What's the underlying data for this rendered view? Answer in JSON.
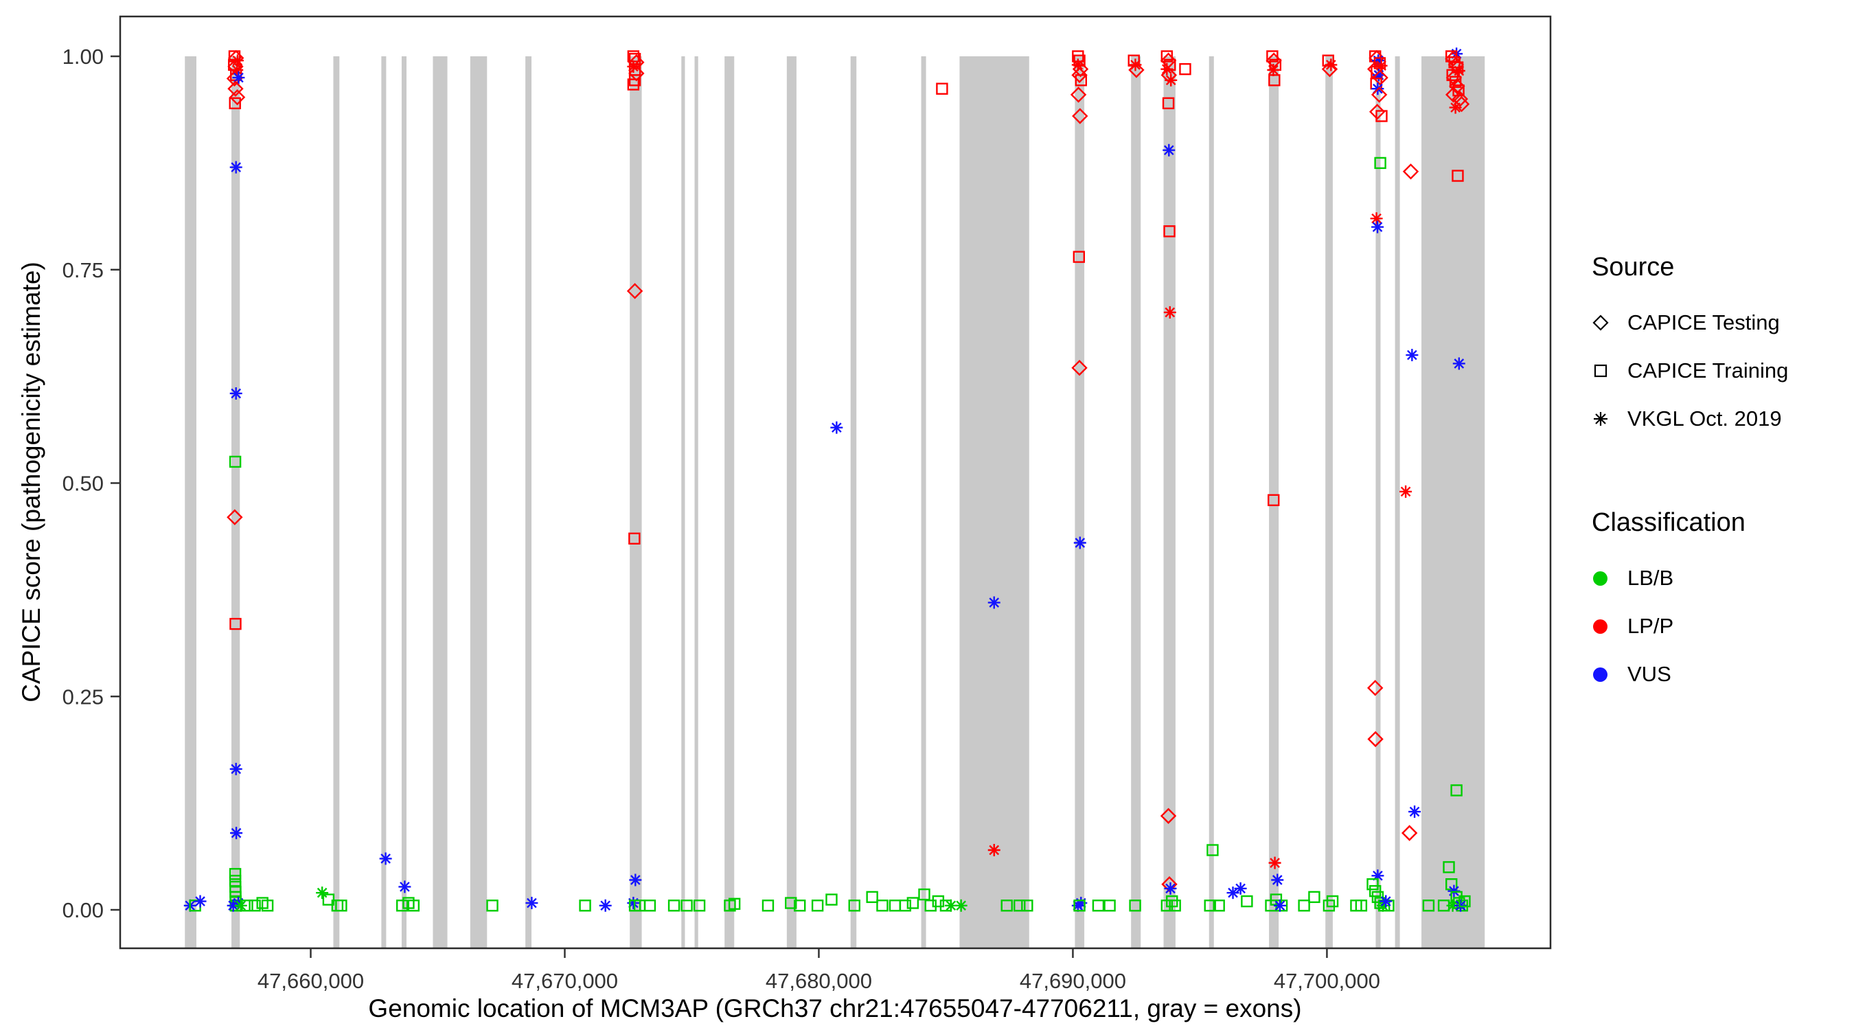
{
  "chart_data": {
    "type": "scatter",
    "title": "",
    "xlabel": "Genomic location of MCM3AP (GRCh37 chr21:47655047-47706211, gray = exons)",
    "ylabel": "CAPICE score (pathogenicity estimate)",
    "xlim": [
      47652500,
      47708800
    ],
    "ylim": [
      0,
      1
    ],
    "grid": false,
    "x_ticks": {
      "values": [
        47660000,
        47670000,
        47680000,
        47690000,
        47700000
      ],
      "labels": [
        "47,660,000",
        "47,670,000",
        "47,680,000",
        "47,690,000",
        "47,700,000"
      ]
    },
    "y_ticks": {
      "values": [
        0,
        0.25,
        0.5,
        0.75,
        1.0
      ],
      "labels": [
        "0.00",
        "0.25",
        "0.50",
        "0.75",
        "1.00"
      ]
    },
    "colors": {
      "exon": "#C9C9C9",
      "LB/B": "#00CD00",
      "LP/P": "#FF0000",
      "VUS": "#1414FF",
      "axis_text": "#333333",
      "panel_border": "#2b2b2b"
    },
    "legend": {
      "source": {
        "title": "Source",
        "items": [
          {
            "label": "CAPICE Testing",
            "marker": "diamond"
          },
          {
            "label": "CAPICE Training",
            "marker": "square"
          },
          {
            "label": "VKGL Oct. 2019",
            "marker": "asterisk"
          }
        ]
      },
      "classification": {
        "title": "Classification",
        "items": [
          {
            "label": "LB/B",
            "color": "#00CD00"
          },
          {
            "label": "LP/P",
            "color": "#FF0000"
          },
          {
            "label": "VUS",
            "color": "#1414FF"
          }
        ]
      }
    },
    "point_format": [
      "genomic_position",
      "capice_score",
      "source_code",
      "classification_code"
    ],
    "source_codes": {
      "d": "CAPICE Testing (open diamond)",
      "q": "CAPICE Training (open square)",
      "a": "VKGL Oct. 2019 (asterisk)"
    },
    "classification_codes": {
      "g": "LB/B",
      "r": "LP/P",
      "b": "VUS"
    },
    "exons": [
      [
        47655047,
        47655500
      ],
      [
        47656880,
        47657210
      ],
      [
        47660890,
        47661130
      ],
      [
        47662780,
        47662970
      ],
      [
        47663580,
        47663770
      ],
      [
        47664810,
        47665380
      ],
      [
        47666280,
        47666940
      ],
      [
        47668450,
        47668690
      ],
      [
        47672560,
        47673030
      ],
      [
        47674590,
        47674730
      ],
      [
        47675110,
        47675250
      ],
      [
        47676290,
        47676670
      ],
      [
        47678740,
        47679120
      ],
      [
        47681250,
        47681480
      ],
      [
        47684030,
        47684220
      ],
      [
        47685540,
        47688280
      ],
      [
        47690080,
        47690450
      ],
      [
        47692290,
        47692670
      ],
      [
        47693570,
        47694040
      ],
      [
        47695360,
        47695550
      ],
      [
        47697720,
        47698100
      ],
      [
        47699940,
        47700230
      ],
      [
        47701920,
        47702110
      ],
      [
        47702680,
        47702870
      ],
      [
        47703720,
        47706211
      ]
    ],
    "points": [
      [
        47655250,
        0.005,
        "a",
        "b"
      ],
      [
        47655450,
        0.005,
        "q",
        "g"
      ],
      [
        47655650,
        0.01,
        "a",
        "b"
      ],
      [
        47657000,
        1.0,
        "q",
        "r"
      ],
      [
        47657060,
        0.998,
        "d",
        "r"
      ],
      [
        47657120,
        0.995,
        "a",
        "r"
      ],
      [
        47656980,
        0.99,
        "q",
        "r"
      ],
      [
        47657040,
        0.988,
        "d",
        "r"
      ],
      [
        47657100,
        0.984,
        "a",
        "r"
      ],
      [
        47657060,
        0.978,
        "q",
        "r"
      ],
      [
        47657000,
        0.974,
        "d",
        "r"
      ],
      [
        47657160,
        0.975,
        "a",
        "b"
      ],
      [
        47657040,
        0.962,
        "d",
        "r"
      ],
      [
        47657020,
        0.945,
        "q",
        "r"
      ],
      [
        47657110,
        0.952,
        "d",
        "r"
      ],
      [
        47657060,
        0.87,
        "a",
        "b"
      ],
      [
        47657060,
        0.605,
        "a",
        "b"
      ],
      [
        47657030,
        0.525,
        "q",
        "g"
      ],
      [
        47657010,
        0.46,
        "d",
        "r"
      ],
      [
        47657040,
        0.335,
        "q",
        "r"
      ],
      [
        47657060,
        0.165,
        "a",
        "b"
      ],
      [
        47657070,
        0.09,
        "a",
        "b"
      ],
      [
        47657030,
        0.042,
        "q",
        "g"
      ],
      [
        47657030,
        0.034,
        "q",
        "g"
      ],
      [
        47657035,
        0.027,
        "q",
        "g"
      ],
      [
        47657040,
        0.021,
        "q",
        "g"
      ],
      [
        47657040,
        0.015,
        "q",
        "g"
      ],
      [
        47657045,
        0.01,
        "q",
        "g"
      ],
      [
        47657050,
        0.005,
        "q",
        "g"
      ],
      [
        47656950,
        0.005,
        "a",
        "b"
      ],
      [
        47657150,
        0.008,
        "a",
        "b"
      ],
      [
        47657250,
        0.005,
        "a",
        "g"
      ],
      [
        47657500,
        0.005,
        "q",
        "g"
      ],
      [
        47657800,
        0.005,
        "q",
        "g"
      ],
      [
        47658100,
        0.008,
        "q",
        "g"
      ],
      [
        47658300,
        0.005,
        "q",
        "g"
      ],
      [
        47660450,
        0.02,
        "a",
        "g"
      ],
      [
        47660700,
        0.012,
        "q",
        "g"
      ],
      [
        47661050,
        0.005,
        "q",
        "g"
      ],
      [
        47661200,
        0.005,
        "q",
        "g"
      ],
      [
        47662950,
        0.06,
        "a",
        "b"
      ],
      [
        47663700,
        0.027,
        "a",
        "b"
      ],
      [
        47663600,
        0.005,
        "q",
        "g"
      ],
      [
        47663850,
        0.008,
        "q",
        "g"
      ],
      [
        47664050,
        0.005,
        "q",
        "g"
      ],
      [
        47667150,
        0.005,
        "q",
        "g"
      ],
      [
        47668700,
        0.008,
        "a",
        "b"
      ],
      [
        47670800,
        0.005,
        "q",
        "g"
      ],
      [
        47671600,
        0.005,
        "a",
        "b"
      ],
      [
        47672700,
        1.0,
        "q",
        "r"
      ],
      [
        47672760,
        0.997,
        "q",
        "r"
      ],
      [
        47672820,
        0.993,
        "d",
        "r"
      ],
      [
        47672700,
        0.988,
        "a",
        "r"
      ],
      [
        47672760,
        0.984,
        "q",
        "r"
      ],
      [
        47672820,
        0.98,
        "d",
        "r"
      ],
      [
        47672760,
        0.972,
        "q",
        "r"
      ],
      [
        47672700,
        0.967,
        "q",
        "r"
      ],
      [
        47672760,
        0.725,
        "d",
        "r"
      ],
      [
        47672740,
        0.435,
        "q",
        "r"
      ],
      [
        47672780,
        0.035,
        "a",
        "b"
      ],
      [
        47672700,
        0.008,
        "a",
        "b"
      ],
      [
        47672760,
        0.005,
        "q",
        "g"
      ],
      [
        47672950,
        0.005,
        "q",
        "g"
      ],
      [
        47673350,
        0.005,
        "q",
        "g"
      ],
      [
        47674300,
        0.005,
        "q",
        "g"
      ],
      [
        47674800,
        0.005,
        "q",
        "g"
      ],
      [
        47675300,
        0.005,
        "q",
        "g"
      ],
      [
        47676500,
        0.005,
        "q",
        "g"
      ],
      [
        47676680,
        0.007,
        "q",
        "g"
      ],
      [
        47678000,
        0.005,
        "q",
        "g"
      ],
      [
        47678900,
        0.008,
        "q",
        "g"
      ],
      [
        47679250,
        0.005,
        "q",
        "g"
      ],
      [
        47679950,
        0.005,
        "q",
        "g"
      ],
      [
        47680500,
        0.012,
        "q",
        "g"
      ],
      [
        47680700,
        0.565,
        "a",
        "b"
      ],
      [
        47681400,
        0.005,
        "q",
        "g"
      ],
      [
        47682100,
        0.015,
        "q",
        "g"
      ],
      [
        47682500,
        0.005,
        "q",
        "g"
      ],
      [
        47683000,
        0.005,
        "q",
        "g"
      ],
      [
        47683400,
        0.005,
        "q",
        "g"
      ],
      [
        47683700,
        0.008,
        "q",
        "g"
      ],
      [
        47684150,
        0.018,
        "q",
        "g"
      ],
      [
        47684400,
        0.005,
        "q",
        "g"
      ],
      [
        47684700,
        0.01,
        "q",
        "g"
      ],
      [
        47685000,
        0.005,
        "q",
        "g"
      ],
      [
        47685200,
        0.005,
        "a",
        "g"
      ],
      [
        47685600,
        0.005,
        "a",
        "g"
      ],
      [
        47684850,
        0.962,
        "q",
        "r"
      ],
      [
        47686900,
        0.36,
        "a",
        "b"
      ],
      [
        47686900,
        0.07,
        "a",
        "r"
      ],
      [
        47687400,
        0.005,
        "q",
        "g"
      ],
      [
        47687900,
        0.005,
        "q",
        "g"
      ],
      [
        47688200,
        0.005,
        "q",
        "g"
      ],
      [
        47690200,
        1.0,
        "q",
        "r"
      ],
      [
        47690260,
        0.995,
        "q",
        "r"
      ],
      [
        47690200,
        0.99,
        "a",
        "r"
      ],
      [
        47690300,
        0.985,
        "d",
        "r"
      ],
      [
        47690260,
        0.978,
        "d",
        "r"
      ],
      [
        47690320,
        0.972,
        "q",
        "r"
      ],
      [
        47690220,
        0.955,
        "d",
        "r"
      ],
      [
        47690280,
        0.93,
        "d",
        "r"
      ],
      [
        47690240,
        0.765,
        "q",
        "r"
      ],
      [
        47690260,
        0.635,
        "d",
        "r"
      ],
      [
        47690280,
        0.43,
        "a",
        "b"
      ],
      [
        47690200,
        0.005,
        "a",
        "b"
      ],
      [
        47690320,
        0.008,
        "a",
        "b"
      ],
      [
        47690260,
        0.005,
        "q",
        "g"
      ],
      [
        47691000,
        0.005,
        "q",
        "g"
      ],
      [
        47691450,
        0.005,
        "q",
        "g"
      ],
      [
        47692400,
        0.995,
        "q",
        "r"
      ],
      [
        47692460,
        0.99,
        "a",
        "r"
      ],
      [
        47692500,
        0.984,
        "d",
        "r"
      ],
      [
        47692450,
        0.005,
        "q",
        "g"
      ],
      [
        47693700,
        1.0,
        "q",
        "r"
      ],
      [
        47693760,
        0.995,
        "d",
        "r"
      ],
      [
        47693820,
        0.99,
        "q",
        "r"
      ],
      [
        47693700,
        0.985,
        "a",
        "r"
      ],
      [
        47693780,
        0.978,
        "d",
        "r"
      ],
      [
        47693860,
        0.972,
        "a",
        "r"
      ],
      [
        47694420,
        0.985,
        "q",
        "r"
      ],
      [
        47693760,
        0.945,
        "q",
        "r"
      ],
      [
        47693780,
        0.89,
        "a",
        "b"
      ],
      [
        47693800,
        0.795,
        "q",
        "r"
      ],
      [
        47693820,
        0.7,
        "a",
        "r"
      ],
      [
        47693760,
        0.11,
        "d",
        "r"
      ],
      [
        47693800,
        0.03,
        "d",
        "r"
      ],
      [
        47693840,
        0.025,
        "a",
        "b"
      ],
      [
        47693700,
        0.005,
        "q",
        "g"
      ],
      [
        47693900,
        0.01,
        "q",
        "g"
      ],
      [
        47694020,
        0.005,
        "q",
        "g"
      ],
      [
        47695500,
        0.07,
        "q",
        "g"
      ],
      [
        47695400,
        0.005,
        "q",
        "g"
      ],
      [
        47695750,
        0.005,
        "q",
        "g"
      ],
      [
        47696300,
        0.02,
        "a",
        "b"
      ],
      [
        47696600,
        0.025,
        "a",
        "b"
      ],
      [
        47696850,
        0.01,
        "q",
        "g"
      ],
      [
        47697850,
        1.0,
        "q",
        "r"
      ],
      [
        47697910,
        0.995,
        "d",
        "r"
      ],
      [
        47697970,
        0.99,
        "q",
        "r"
      ],
      [
        47697890,
        0.984,
        "a",
        "r"
      ],
      [
        47697930,
        0.972,
        "q",
        "r"
      ],
      [
        47697900,
        0.48,
        "q",
        "r"
      ],
      [
        47697950,
        0.055,
        "a",
        "r"
      ],
      [
        47698050,
        0.035,
        "a",
        "b"
      ],
      [
        47697800,
        0.005,
        "q",
        "g"
      ],
      [
        47698000,
        0.012,
        "q",
        "g"
      ],
      [
        47698220,
        0.005,
        "q",
        "g"
      ],
      [
        47698150,
        0.005,
        "a",
        "b"
      ],
      [
        47699100,
        0.005,
        "q",
        "g"
      ],
      [
        47699500,
        0.015,
        "q",
        "g"
      ],
      [
        47700050,
        0.995,
        "q",
        "r"
      ],
      [
        47700110,
        0.985,
        "d",
        "r"
      ],
      [
        47700160,
        0.99,
        "a",
        "r"
      ],
      [
        47700080,
        0.005,
        "q",
        "g"
      ],
      [
        47700220,
        0.01,
        "q",
        "g"
      ],
      [
        47701150,
        0.005,
        "q",
        "g"
      ],
      [
        47701350,
        0.005,
        "q",
        "g"
      ],
      [
        47701900,
        1.0,
        "q",
        "r"
      ],
      [
        47701960,
        0.998,
        "d",
        "r"
      ],
      [
        47702020,
        0.995,
        "a",
        "b"
      ],
      [
        47702080,
        0.992,
        "q",
        "r"
      ],
      [
        47702140,
        0.989,
        "a",
        "r"
      ],
      [
        47701900,
        0.985,
        "d",
        "r"
      ],
      [
        47701960,
        0.982,
        "q",
        "r"
      ],
      [
        47702040,
        0.978,
        "a",
        "b"
      ],
      [
        47702100,
        0.975,
        "d",
        "r"
      ],
      [
        47701940,
        0.968,
        "q",
        "r"
      ],
      [
        47702000,
        0.962,
        "a",
        "b"
      ],
      [
        47702060,
        0.955,
        "d",
        "r"
      ],
      [
        47701980,
        0.935,
        "d",
        "r"
      ],
      [
        47702150,
        0.93,
        "q",
        "r"
      ],
      [
        47702100,
        0.875,
        "q",
        "g"
      ],
      [
        47701950,
        0.81,
        "a",
        "r"
      ],
      [
        47701990,
        0.8,
        "a",
        "b"
      ],
      [
        47703300,
        0.865,
        "d",
        "r"
      ],
      [
        47703350,
        0.65,
        "a",
        "b"
      ],
      [
        47703100,
        0.49,
        "a",
        "r"
      ],
      [
        47703250,
        0.09,
        "d",
        "r"
      ],
      [
        47703450,
        0.115,
        "a",
        "b"
      ],
      [
        47701900,
        0.26,
        "d",
        "r"
      ],
      [
        47701910,
        0.2,
        "d",
        "r"
      ],
      [
        47702000,
        0.04,
        "a",
        "b"
      ],
      [
        47701800,
        0.03,
        "q",
        "g"
      ],
      [
        47701900,
        0.022,
        "q",
        "g"
      ],
      [
        47702000,
        0.015,
        "q",
        "g"
      ],
      [
        47702100,
        0.008,
        "q",
        "g"
      ],
      [
        47702250,
        0.005,
        "q",
        "g"
      ],
      [
        47702420,
        0.005,
        "q",
        "g"
      ],
      [
        47702200,
        0.005,
        "a",
        "g"
      ],
      [
        47702320,
        0.01,
        "a",
        "b"
      ],
      [
        47705100,
        1.003,
        "a",
        "b"
      ],
      [
        47704900,
        1.0,
        "q",
        "r"
      ],
      [
        47704960,
        0.997,
        "d",
        "r"
      ],
      [
        47705020,
        0.993,
        "q",
        "r"
      ],
      [
        47705080,
        0.99,
        "d",
        "r"
      ],
      [
        47705140,
        0.987,
        "q",
        "r"
      ],
      [
        47705200,
        0.983,
        "a",
        "r"
      ],
      [
        47704940,
        0.978,
        "q",
        "r"
      ],
      [
        47705000,
        0.975,
        "d",
        "r"
      ],
      [
        47705060,
        0.97,
        "q",
        "r"
      ],
      [
        47705120,
        0.965,
        "d",
        "r"
      ],
      [
        47705180,
        0.96,
        "q",
        "r"
      ],
      [
        47704980,
        0.955,
        "d",
        "r"
      ],
      [
        47705240,
        0.95,
        "d",
        "r"
      ],
      [
        47705300,
        0.944,
        "d",
        "r"
      ],
      [
        47705060,
        0.94,
        "a",
        "r"
      ],
      [
        47705150,
        0.86,
        "q",
        "r"
      ],
      [
        47705200,
        0.64,
        "a",
        "b"
      ],
      [
        47705100,
        0.14,
        "q",
        "g"
      ],
      [
        47704800,
        0.05,
        "q",
        "g"
      ],
      [
        47704900,
        0.03,
        "q",
        "g"
      ],
      [
        47705000,
        0.022,
        "a",
        "b"
      ],
      [
        47705100,
        0.015,
        "q",
        "g"
      ],
      [
        47705200,
        0.008,
        "q",
        "g"
      ],
      [
        47705320,
        0.005,
        "q",
        "g"
      ],
      [
        47704950,
        0.005,
        "a",
        "g"
      ],
      [
        47705260,
        0.005,
        "a",
        "b"
      ],
      [
        47705420,
        0.01,
        "q",
        "g"
      ],
      [
        47704600,
        0.005,
        "q",
        "g"
      ],
      [
        47704000,
        0.005,
        "q",
        "g"
      ]
    ]
  }
}
